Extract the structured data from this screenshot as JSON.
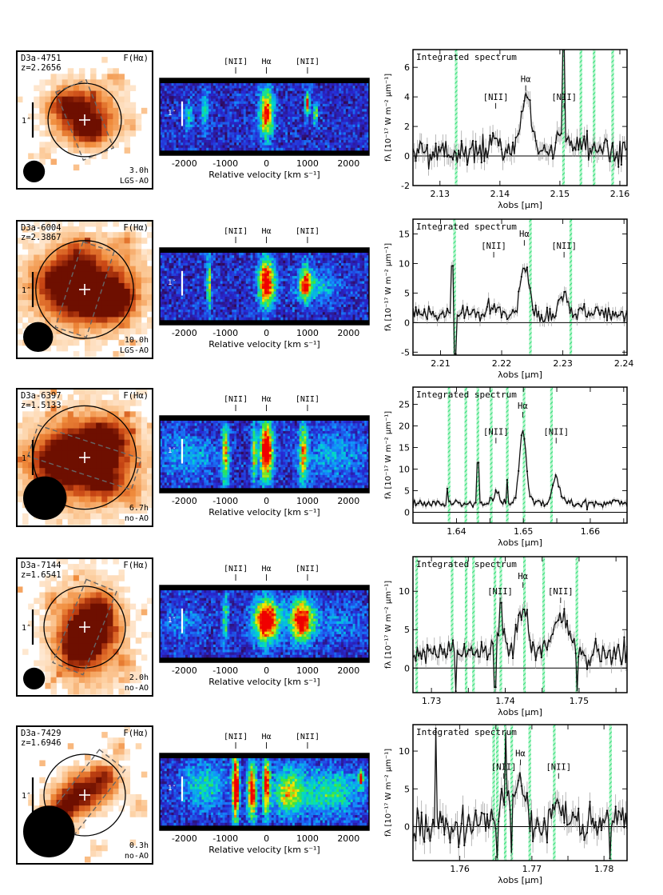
{
  "figure": {
    "labels": {
      "flux_map": "F(Hα)",
      "arcsec": "1″",
      "integrated": "Integrated spectrum",
      "rel_vel_xlabel": "Relative velocity  [km s⁻¹]",
      "nii": "[NII]",
      "halpha": "Hα",
      "flux_ylabel": "fλ [10⁻¹⁷ W m⁻² μm⁻¹]",
      "lam_xlabel": "λobs  [μm]"
    },
    "colors": {
      "frame": "#000000",
      "sky_band": "#33e07a",
      "map_hot": "#8b1a00",
      "spectrum_line": "#111111",
      "error_bars": "#9a9a9a",
      "pv_background": "#000000"
    }
  },
  "chart_data": [
    {
      "id": "D3a-4751",
      "name": "D3a-4751",
      "redshift": "z=2.2656",
      "exposure": "3.0h",
      "mode": "LGS-AO",
      "map": {
        "scale_bar": "1″",
        "slit_pa_deg": -22,
        "slit_length": 0.54,
        "aperture_radius": 0.27,
        "psf_size": 0.16,
        "blobs": [
          [
            0.48,
            0.45,
            0.17,
            0.14,
            1.0
          ],
          [
            0.55,
            0.6,
            0.1,
            0.08,
            0.6
          ],
          [
            0.35,
            0.38,
            0.07,
            0.06,
            0.4
          ],
          [
            0.75,
            0.2,
            0.05,
            0.05,
            0.3
          ],
          [
            0.2,
            0.75,
            0.05,
            0.05,
            0.25
          ],
          [
            0.85,
            0.55,
            0.05,
            0.05,
            0.25
          ]
        ]
      },
      "pv": {
        "type": "heatmap",
        "xlabel": "Relative velocity  [km s⁻¹]",
        "xlim": [
          -2600,
          2500
        ],
        "xticks": [
          -2000,
          -1000,
          0,
          1000,
          2000
        ],
        "line_markers": [
          "[NII]",
          "Hα",
          "[NII]"
        ],
        "line_velocities": [
          -750,
          0,
          1000
        ],
        "features": [
          [
            0,
            0.45,
            120,
            0.25,
            0.75
          ],
          [
            -1500,
            0.4,
            60,
            0.2,
            0.35
          ],
          [
            1000,
            0.3,
            40,
            0.12,
            0.8
          ],
          [
            1200,
            0.45,
            40,
            0.12,
            0.5
          ],
          [
            -1900,
            0.5,
            80,
            0.15,
            0.3
          ]
        ],
        "scale_bar": "1″"
      },
      "spectrum": {
        "type": "line",
        "title": "Integrated spectrum",
        "xlim": [
          2.1255,
          2.1612
        ],
        "ylim": [
          -2.0,
          7.2
        ],
        "xticks": [
          2.13,
          2.14,
          2.15,
          2.16
        ],
        "xtick_labels": [
          "2.13",
          "2.14",
          "2.15",
          "2.16"
        ],
        "yticks": [
          -2,
          0,
          2,
          4,
          6
        ],
        "ytick_labels": [
          "-2",
          "0",
          "2",
          "4",
          "6"
        ],
        "lines": [
          {
            "label": "[NII]",
            "center": 2.1393,
            "amplitude": 0.6,
            "sigma": 0.0009
          },
          {
            "label": "Hα",
            "center": 2.1443,
            "amplitude": 3.4,
            "sigma": 0.0008
          },
          {
            "label": "[NII]",
            "center": 2.1507,
            "amplitude": 1.2,
            "sigma": 0.0009
          }
        ],
        "label_y": [
          3.8,
          5.0,
          3.8
        ],
        "continuum": 0.4,
        "noise": 0.5,
        "sky_bands": [
          2.1327,
          2.1506,
          2.1535,
          2.1557,
          2.1588
        ],
        "spikes": [
          [
            2.1506,
            7.2
          ]
        ],
        "xlabel": "λobs  [μm]",
        "ylabel": "fλ [10⁻¹⁷ W m⁻² μm⁻¹]"
      }
    },
    {
      "id": "D3a-6004",
      "name": "D3a-6004",
      "redshift": "z=2.3867",
      "exposure": "10.0h",
      "mode": "LGS-AO",
      "map": {
        "scale_bar": "1″",
        "slit_pa_deg": 18,
        "slit_length": 0.66,
        "aperture_radius": 0.36,
        "psf_size": 0.22,
        "blobs": [
          [
            0.5,
            0.48,
            0.33,
            0.24,
            0.7
          ],
          [
            0.55,
            0.55,
            0.17,
            0.12,
            1.0
          ],
          [
            0.72,
            0.6,
            0.08,
            0.07,
            0.9
          ],
          [
            0.35,
            0.45,
            0.12,
            0.09,
            0.65
          ],
          [
            0.45,
            0.25,
            0.1,
            0.08,
            0.45
          ],
          [
            0.8,
            0.15,
            0.05,
            0.05,
            0.3
          ],
          [
            0.2,
            0.85,
            0.04,
            0.04,
            0.25
          ]
        ]
      },
      "pv": {
        "type": "heatmap",
        "xlabel": "Relative velocity  [km s⁻¹]",
        "xlim": [
          -2600,
          2500
        ],
        "xticks": [
          -2000,
          -1000,
          0,
          1000,
          2000
        ],
        "line_markers": [
          "[NII]",
          "Hα",
          "[NII]"
        ],
        "line_velocities": [
          -750,
          0,
          1000
        ],
        "features": [
          [
            0,
            0.45,
            140,
            0.25,
            0.85
          ],
          [
            950,
            0.45,
            100,
            0.2,
            0.55
          ],
          [
            -1400,
            0.45,
            40,
            0.3,
            0.5
          ],
          [
            1200,
            0.5,
            400,
            0.15,
            0.25
          ]
        ],
        "scale_bar": "1″"
      },
      "spectrum": {
        "type": "line",
        "title": "Integrated spectrum",
        "xlim": [
          2.2055,
          2.2405
        ],
        "ylim": [
          -5.5,
          17.5
        ],
        "xticks": [
          2.21,
          2.22,
          2.23,
          2.24
        ],
        "xtick_labels": [
          "2.21",
          "2.22",
          "2.23",
          "2.24"
        ],
        "yticks": [
          -5,
          0,
          5,
          10,
          15
        ],
        "ytick_labels": [
          "-5",
          "0",
          "5",
          "10",
          "15"
        ],
        "lines": [
          {
            "label": "[NII]",
            "center": 2.2187,
            "amplitude": 0.9,
            "sigma": 0.0008
          },
          {
            "label": "Hα",
            "center": 2.2237,
            "amplitude": 8.2,
            "sigma": 0.0007
          },
          {
            "label": "[NII]",
            "center": 2.2302,
            "amplitude": 3.4,
            "sigma": 0.0007
          }
        ],
        "label_y": [
          12.5,
          14.5,
          12.5
        ],
        "continuum": 1.6,
        "noise": 0.7,
        "sky_bands": [
          2.2123,
          2.2247,
          2.2313
        ],
        "spikes": [
          [
            2.2119,
            9.6
          ],
          [
            2.2124,
            -5.3
          ]
        ],
        "xlabel": "λobs  [μm]",
        "ylabel": "fλ [10⁻¹⁷ W m⁻² μm⁻¹]"
      }
    },
    {
      "id": "D3a-6397",
      "name": "D3a-6397",
      "redshift": "z=1.5133",
      "exposure": "6.7h",
      "mode": "no-AO",
      "map": {
        "scale_bar": "1″",
        "slit_pa_deg": -72,
        "slit_length": 0.8,
        "aperture_radius": 0.38,
        "psf_size": 0.32,
        "blobs": [
          [
            0.48,
            0.52,
            0.32,
            0.26,
            0.8
          ],
          [
            0.5,
            0.5,
            0.14,
            0.12,
            1.0
          ],
          [
            0.3,
            0.55,
            0.12,
            0.1,
            0.6
          ],
          [
            0.7,
            0.35,
            0.1,
            0.1,
            0.5
          ],
          [
            0.65,
            0.7,
            0.1,
            0.08,
            0.45
          ],
          [
            0.85,
            0.8,
            0.05,
            0.05,
            0.3
          ]
        ]
      },
      "pv": {
        "type": "heatmap",
        "xlabel": "Relative velocity  [km s⁻¹]",
        "xlim": [
          -2600,
          2500
        ],
        "xticks": [
          -2000,
          -1000,
          0,
          1000,
          2000
        ],
        "line_markers": [
          "[NII]",
          "Hα",
          "[NII]"
        ],
        "line_velocities": [
          -750,
          0,
          1000
        ],
        "features": [
          [
            0,
            0.45,
            110,
            0.3,
            0.95
          ],
          [
            -1000,
            0.5,
            60,
            0.35,
            0.55
          ],
          [
            -300,
            0.5,
            50,
            0.3,
            0.5
          ],
          [
            900,
            0.5,
            70,
            0.35,
            0.5
          ],
          [
            -1900,
            0.5,
            500,
            0.25,
            0.2
          ],
          [
            1600,
            0.5,
            600,
            0.25,
            0.2
          ]
        ],
        "scale_bar": "1″"
      },
      "spectrum": {
        "type": "line",
        "title": "Integrated spectrum",
        "xlim": [
          1.6335,
          1.6655
        ],
        "ylim": [
          -2.5,
          29.0
        ],
        "xticks": [
          1.64,
          1.645,
          1.65,
          1.655,
          1.66,
          1.665
        ],
        "xtick_labels": [
          "1.64",
          "",
          "1.65",
          "",
          "1.66",
          ""
        ],
        "yticks": [
          0,
          5,
          10,
          15,
          20,
          25
        ],
        "ytick_labels": [
          "0",
          "5",
          "10",
          "15",
          "20",
          "25"
        ],
        "lines": [
          {
            "label": "[NII]",
            "center": 1.6459,
            "amplitude": 2.5,
            "sigma": 0.0005
          },
          {
            "label": "Hα",
            "center": 1.6499,
            "amplitude": 17.0,
            "sigma": 0.0005
          },
          {
            "label": "[NII]",
            "center": 1.6549,
            "amplitude": 6.5,
            "sigma": 0.0005
          }
        ],
        "label_y": [
          18.0,
          24.0,
          18.0
        ],
        "continuum": 2.0,
        "noise": 0.5,
        "sky_bands": [
          1.6389,
          1.6414,
          1.6432,
          1.6452,
          1.6476,
          1.6501,
          1.6542
        ],
        "spikes": [
          [
            1.6387,
            5.5
          ],
          [
            1.6432,
            11.5
          ],
          [
            1.6476,
            7.5
          ]
        ],
        "xlabel": "λobs  [μm]",
        "ylabel": "fλ [10⁻¹⁷ W m⁻² μm⁻¹]"
      }
    },
    {
      "id": "D3a-7144",
      "name": "D3a-7144",
      "redshift": "z=1.6541",
      "exposure": "2.0h",
      "mode": "no-AO",
      "map": {
        "scale_bar": "1″",
        "slit_pa_deg": 22,
        "slit_length": 0.66,
        "aperture_radius": 0.3,
        "psf_size": 0.16,
        "blobs": [
          [
            0.52,
            0.55,
            0.2,
            0.26,
            0.7
          ],
          [
            0.55,
            0.52,
            0.1,
            0.1,
            1.0
          ],
          [
            0.45,
            0.68,
            0.1,
            0.12,
            0.6
          ],
          [
            0.62,
            0.35,
            0.07,
            0.07,
            0.5
          ],
          [
            0.25,
            0.3,
            0.04,
            0.06,
            0.3
          ],
          [
            0.8,
            0.78,
            0.05,
            0.05,
            0.3
          ]
        ]
      },
      "pv": {
        "type": "heatmap",
        "xlabel": "Relative velocity  [km s⁻¹]",
        "xlim": [
          -2600,
          2500
        ],
        "xticks": [
          -2000,
          -1000,
          0,
          1000,
          2000
        ],
        "line_markers": [
          "[NII]",
          "Hα",
          "[NII]"
        ],
        "line_velocities": [
          -750,
          0,
          1000
        ],
        "features": [
          [
            0,
            0.45,
            220,
            0.22,
            0.9
          ],
          [
            850,
            0.45,
            200,
            0.22,
            0.8
          ],
          [
            -1000,
            0.4,
            60,
            0.3,
            0.35
          ],
          [
            -2000,
            0.5,
            400,
            0.2,
            0.15
          ],
          [
            1700,
            0.5,
            500,
            0.2,
            0.15
          ]
        ],
        "scale_bar": "1″"
      },
      "spectrum": {
        "type": "line",
        "title": "Integrated spectrum",
        "xlim": [
          1.7275,
          1.7565
        ],
        "ylim": [
          -3.2,
          14.5
        ],
        "xticks": [
          1.73,
          1.735,
          1.74,
          1.745,
          1.75,
          1.755
        ],
        "xtick_labels": [
          "1.73",
          "",
          "1.74",
          "",
          "1.75",
          ""
        ],
        "yticks": [
          0,
          5,
          10
        ],
        "ytick_labels": [
          "0",
          "5",
          "10"
        ],
        "lines": [
          {
            "label": "[NII]",
            "center": 1.7393,
            "amplitude": 3.0,
            "sigma": 0.0007
          },
          {
            "label": "Hα",
            "center": 1.7424,
            "amplitude": 5.5,
            "sigma": 0.0007
          },
          {
            "label": "[NII]",
            "center": 1.7475,
            "amplitude": 4.5,
            "sigma": 0.001
          }
        ],
        "label_y": [
          9.6,
          11.6,
          9.6
        ],
        "continuum": 2.0,
        "noise": 0.8,
        "sky_bands": [
          1.728,
          1.7328,
          1.7347,
          1.7357,
          1.7386,
          1.7394,
          1.7426,
          1.7452,
          1.7497
        ],
        "spikes": [
          [
            1.7333,
            -3.0
          ],
          [
            1.7386,
            -2.5
          ],
          [
            1.7394,
            8.5
          ],
          [
            1.7497,
            -3.0
          ]
        ],
        "xlabel": "λobs  [μm]",
        "ylabel": "fλ [10⁻¹⁷ W m⁻² μm⁻¹]"
      }
    },
    {
      "id": "D3a-7429",
      "name": "D3a-7429",
      "redshift": "z=1.6946",
      "exposure": "0.3h",
      "mode": "no-AO",
      "map": {
        "scale_bar": "1″",
        "slit_pa_deg": 38,
        "slit_length": 0.66,
        "aperture_radius": 0.3,
        "psf_size": 0.38,
        "blobs": [
          [
            0.55,
            0.45,
            0.14,
            0.1,
            0.85
          ],
          [
            0.4,
            0.55,
            0.1,
            0.08,
            0.8
          ],
          [
            0.3,
            0.65,
            0.08,
            0.06,
            0.9
          ],
          [
            0.65,
            0.35,
            0.06,
            0.06,
            0.5
          ],
          [
            0.75,
            0.15,
            0.04,
            0.05,
            0.4
          ],
          [
            0.9,
            0.6,
            0.05,
            0.05,
            0.35
          ],
          [
            0.6,
            0.9,
            0.05,
            0.04,
            0.3
          ]
        ]
      },
      "pv": {
        "type": "heatmap",
        "xlabel": "Relative velocity  [km s⁻¹]",
        "xlim": [
          -2600,
          2500
        ],
        "xticks": [
          -2000,
          -1000,
          0,
          1000,
          2000
        ],
        "line_markers": [
          "[NII]",
          "Hα",
          "[NII]"
        ],
        "line_velocities": [
          -750,
          0,
          1000
        ],
        "features": [
          [
            -750,
            0.45,
            60,
            0.35,
            0.9
          ],
          [
            -350,
            0.5,
            80,
            0.3,
            0.8
          ],
          [
            0,
            0.4,
            60,
            0.3,
            0.75
          ],
          [
            500,
            0.5,
            250,
            0.25,
            0.45
          ],
          [
            -1500,
            0.4,
            400,
            0.25,
            0.3
          ],
          [
            1500,
            0.5,
            600,
            0.25,
            0.35
          ],
          [
            2300,
            0.3,
            40,
            0.08,
            0.7
          ]
        ],
        "scale_bar": "1″"
      },
      "spectrum": {
        "type": "line",
        "title": "Integrated spectrum",
        "xlim": [
          1.7535,
          1.7832
        ],
        "ylim": [
          -4.5,
          13.5
        ],
        "xticks": [
          1.76,
          1.765,
          1.77,
          1.775,
          1.78
        ],
        "xtick_labels": [
          "1.76",
          "",
          "1.77",
          "",
          "1.78"
        ],
        "yticks": [
          0,
          5,
          10
        ],
        "ytick_labels": [
          "0",
          "5",
          "10"
        ],
        "lines": [
          {
            "label": "[NII]",
            "center": 1.7661,
            "amplitude": 3.5,
            "sigma": 0.0007
          },
          {
            "label": "Hα",
            "center": 1.7684,
            "amplitude": 6.0,
            "sigma": 0.0007
          },
          {
            "label": "[NII]",
            "center": 1.7737,
            "amplitude": 2.5,
            "sigma": 0.0008
          }
        ],
        "label_y": [
          7.5,
          9.3,
          7.5
        ],
        "continuum": 0.4,
        "noise": 1.2,
        "sky_bands": [
          1.7647,
          1.7652,
          1.7663,
          1.7672,
          1.7697,
          1.7731,
          1.7809
        ],
        "spikes": [
          [
            1.7567,
            13.0
          ],
          [
            1.7652,
            -4.2
          ],
          [
            1.7663,
            12.5
          ],
          [
            1.7672,
            -3.5
          ],
          [
            1.7809,
            -4.2
          ]
        ],
        "xlabel": "λobs  [μm]",
        "ylabel": "fλ [10⁻¹⁷ W m⁻² μm⁻¹]"
      }
    }
  ]
}
